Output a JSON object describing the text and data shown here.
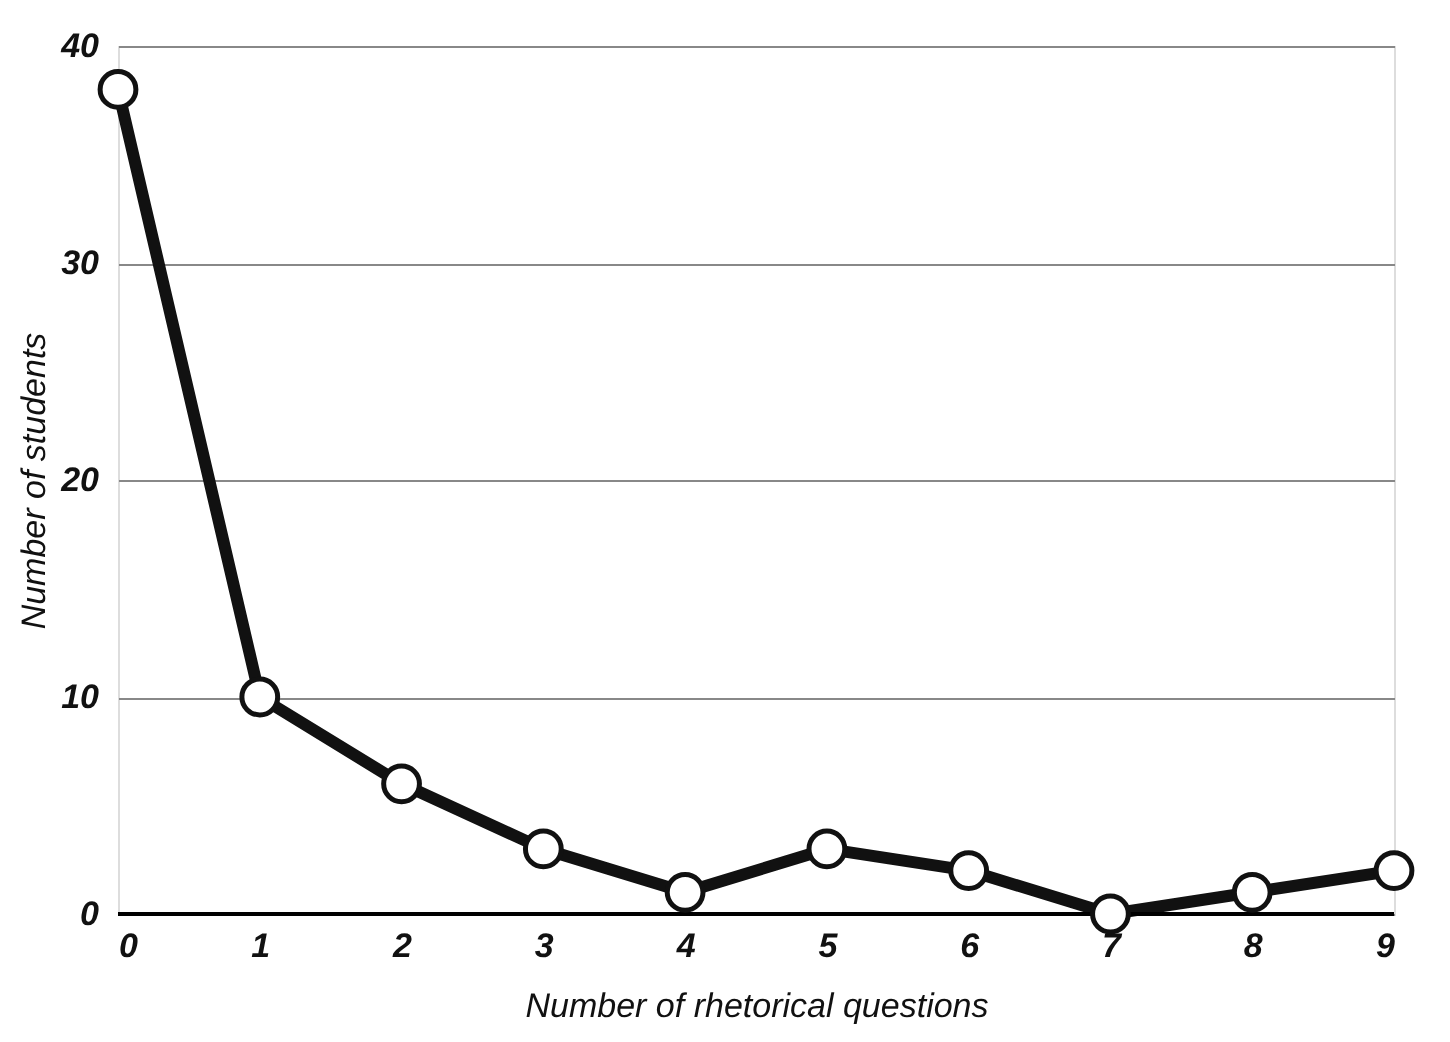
{
  "chart_data": {
    "type": "line",
    "xlabel": "Number of rhetorical questions",
    "ylabel": "Number of students",
    "x": [
      0,
      1,
      2,
      3,
      4,
      5,
      6,
      7,
      8,
      9
    ],
    "values": [
      38,
      10,
      6,
      3,
      1,
      3,
      2,
      0,
      1,
      2
    ],
    "color": "#111111",
    "marker": "circle",
    "line_style": "solid",
    "xlim": [
      0,
      9
    ],
    "xticks": [
      0,
      1,
      2,
      3,
      4,
      5,
      6,
      7,
      8,
      9
    ],
    "ylim": [
      0,
      40
    ],
    "yticks": [
      0,
      10,
      20,
      30,
      40
    ],
    "grid": "y"
  }
}
